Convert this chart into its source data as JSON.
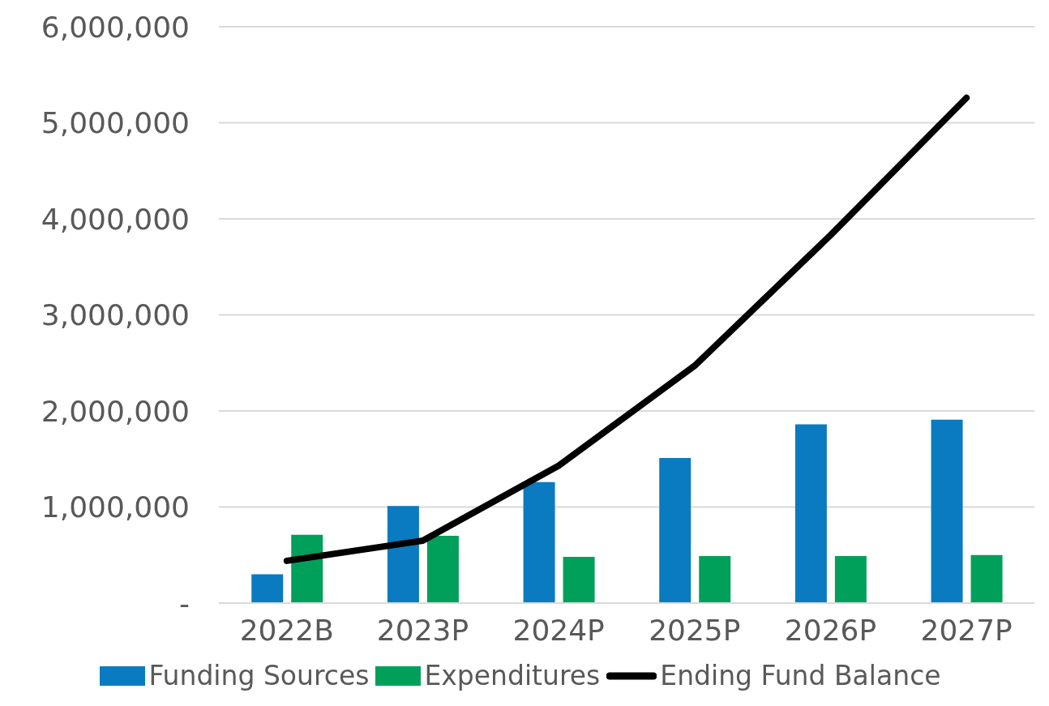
{
  "chart_data": {
    "type": "bar",
    "categories": [
      "2022B",
      "2023P",
      "2024P",
      "2025P",
      "2026P",
      "2027P"
    ],
    "series": [
      {
        "name": "Funding Sources",
        "color": "#0b7bc1",
        "values": [
          300000,
          1010000,
          1260000,
          1510000,
          1860000,
          1910000
        ]
      },
      {
        "name": "Expenditures",
        "color": "#00a05a",
        "values": [
          710000,
          700000,
          480000,
          490000,
          490000,
          500000
        ]
      },
      {
        "name": "Ending Fund Balance",
        "type": "line",
        "color": "#000000",
        "values": [
          440000,
          650000,
          1430000,
          2470000,
          3830000,
          5260000
        ]
      }
    ],
    "ylim": [
      0,
      6000000
    ],
    "yticks": [
      {
        "value": 0,
        "label": "-"
      },
      {
        "value": 1000000,
        "label": "1,000,000"
      },
      {
        "value": 2000000,
        "label": "2,000,000"
      },
      {
        "value": 3000000,
        "label": "3,000,000"
      },
      {
        "value": 4000000,
        "label": "4,000,000"
      },
      {
        "value": 5000000,
        "label": "5,000,000"
      },
      {
        "value": 6000000,
        "label": "6,000,000"
      }
    ],
    "grid": "y",
    "legend": "bottom",
    "marker": "none",
    "line_style": "solid"
  }
}
